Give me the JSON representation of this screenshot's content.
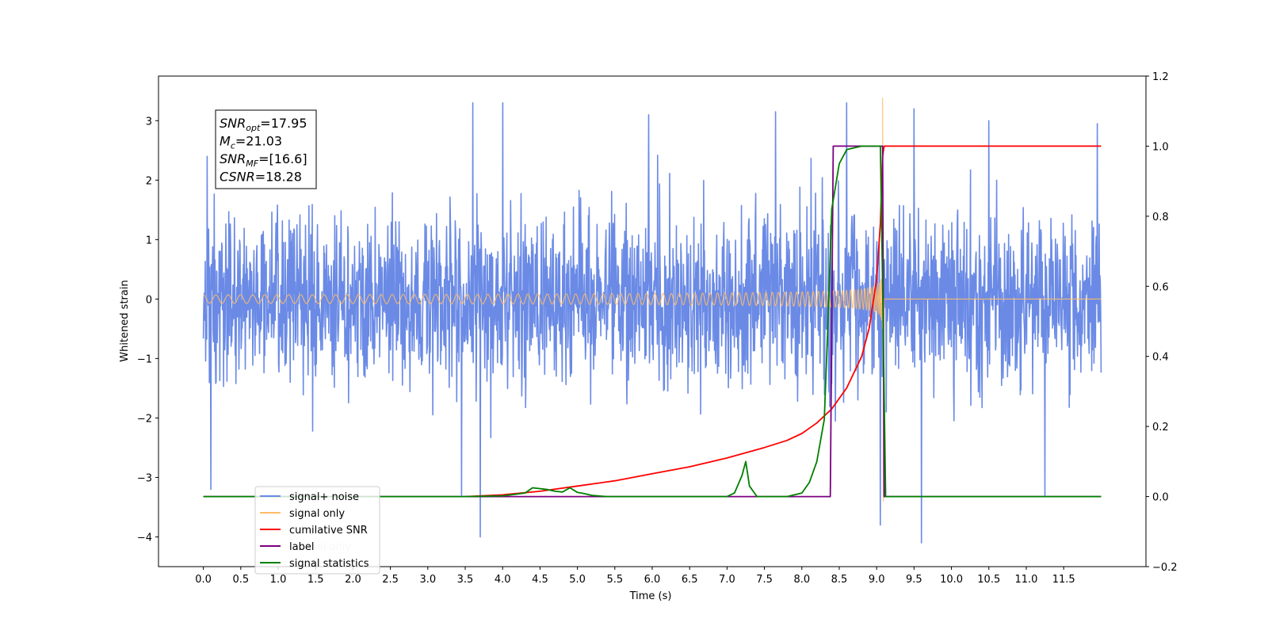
{
  "chart_data": {
    "type": "line",
    "title": "",
    "xlabel": "Time (s)",
    "ylabel": "Whitened strain",
    "y2label": "",
    "xlim": [
      -0.6,
      12.6
    ],
    "ylim": [
      -4.5,
      3.75
    ],
    "y2lim": [
      -0.2,
      1.2
    ],
    "xticks": [
      0.0,
      0.5,
      1.0,
      1.5,
      2.0,
      2.5,
      3.0,
      3.5,
      4.0,
      4.5,
      5.0,
      5.5,
      6.0,
      6.5,
      7.0,
      7.5,
      8.0,
      8.5,
      9.0,
      9.5,
      10.0,
      10.5,
      11.0,
      11.5
    ],
    "xtick_labels": [
      "0.0",
      "0.5",
      "1.0",
      "1.5",
      "2.0",
      "2.5",
      "3.0",
      "3.5",
      "4.0",
      "4.5",
      "5.0",
      "5.5",
      "6.0",
      "6.5",
      "7.0",
      "7.5",
      "8.0",
      "8.5",
      "9.0",
      "9.5",
      "10.0",
      "10.5",
      "11.0",
      "11.5"
    ],
    "yticks": [
      -4,
      -3,
      -2,
      -1,
      0,
      1,
      2,
      3
    ],
    "ytick_labels": [
      "−4",
      "−3",
      "−2",
      "−1",
      "0",
      "1",
      "2",
      "3"
    ],
    "y2ticks": [
      -0.2,
      0.0,
      0.2,
      0.4,
      0.6,
      0.8,
      1.0,
      1.2
    ],
    "y2tick_labels": [
      "−0.2",
      "0.0",
      "0.2",
      "0.4",
      "0.6",
      "0.8",
      "1.0",
      "1.2"
    ],
    "grid": false,
    "legend_position": "lower-left",
    "series": [
      {
        "name": "signal+ noise",
        "axis": "left",
        "color": "#6a8ae6",
        "kind": "noise",
        "x_range": [
          0.0,
          12.0
        ],
        "noise_std": 0.85,
        "peaks": [
          [
            0.05,
            2.4
          ],
          [
            0.1,
            -3.2
          ],
          [
            3.7,
            -4.0
          ],
          [
            3.45,
            -3.3
          ],
          [
            9.05,
            -3.8
          ],
          [
            9.6,
            -4.1
          ],
          [
            4.0,
            3.3
          ],
          [
            3.6,
            3.3
          ],
          [
            8.6,
            3.3
          ],
          [
            9.5,
            3.2
          ],
          [
            11.95,
            2.95
          ],
          [
            11.25,
            -3.3
          ],
          [
            7.65,
            3.15
          ],
          [
            5.95,
            3.1
          ],
          [
            10.5,
            3.0
          ]
        ]
      },
      {
        "name": "signal only",
        "axis": "left",
        "color": "#ffbb66",
        "kind": "chirp",
        "merger_time": 9.08,
        "peak_amplitude": 3.38,
        "min_value": -3.4
      },
      {
        "name": "cumilative SNR",
        "axis": "right",
        "color": "#ff0000",
        "x": [
          3.5,
          4.0,
          4.5,
          5.0,
          5.5,
          6.0,
          6.5,
          7.0,
          7.5,
          7.8,
          8.0,
          8.2,
          8.4,
          8.6,
          8.8,
          8.9,
          9.0,
          9.05,
          9.08,
          9.1,
          12.0
        ],
        "y": [
          0.0,
          0.005,
          0.015,
          0.03,
          0.045,
          0.065,
          0.085,
          0.11,
          0.14,
          0.16,
          0.18,
          0.21,
          0.25,
          0.31,
          0.4,
          0.48,
          0.62,
          0.78,
          0.97,
          1.0,
          1.0
        ]
      },
      {
        "name": "label",
        "axis": "right",
        "color": "#7a0080",
        "x": [
          0.0,
          8.38,
          8.42,
          9.08,
          9.1,
          12.0
        ],
        "y": [
          0.0,
          0.0,
          1.0,
          1.0,
          0.0,
          0.0
        ]
      },
      {
        "name": "signal statistics",
        "axis": "right",
        "color": "#008000",
        "x": [
          0.0,
          3.5,
          4.0,
          4.3,
          4.4,
          4.6,
          4.7,
          4.8,
          4.9,
          5.0,
          5.1,
          5.2,
          5.4,
          6.0,
          7.0,
          7.1,
          7.2,
          7.25,
          7.3,
          7.4,
          7.8,
          8.0,
          8.1,
          8.2,
          8.3,
          8.35,
          8.4,
          8.5,
          8.6,
          8.8,
          9.0,
          9.05,
          9.08,
          9.12,
          12.0
        ],
        "y": [
          0.0,
          0.0,
          0.002,
          0.01,
          0.025,
          0.02,
          0.015,
          0.013,
          0.025,
          0.012,
          0.008,
          0.003,
          0.0,
          0.0,
          0.0,
          0.01,
          0.06,
          0.1,
          0.03,
          0.0,
          0.0,
          0.01,
          0.04,
          0.1,
          0.22,
          0.5,
          0.82,
          0.95,
          0.99,
          1.0,
          1.0,
          1.0,
          0.6,
          0.0,
          0.0
        ]
      }
    ],
    "legend_entries": [
      {
        "label": "signal+ noise",
        "color": "#6a8ae6"
      },
      {
        "label": "signal only",
        "color": "#ffbb66"
      },
      {
        "label": "cumilative SNR",
        "color": "#ff0000"
      },
      {
        "label": "label",
        "color": "#7a0080"
      },
      {
        "label": "signal statistics",
        "color": "#008000"
      }
    ],
    "annotation": {
      "lines": [
        {
          "sym": "SNR",
          "sub": "opt",
          "value": "=17.95"
        },
        {
          "sym": "M",
          "sub": "c",
          "value": "=21.03"
        },
        {
          "sym": "SNR",
          "sub": "MF",
          "value": "=[16.6]"
        },
        {
          "sym": "CSNR",
          "sub": "",
          "value": "=18.28"
        }
      ]
    },
    "ghost_text": [
      "signal only",
      "label only"
    ]
  }
}
